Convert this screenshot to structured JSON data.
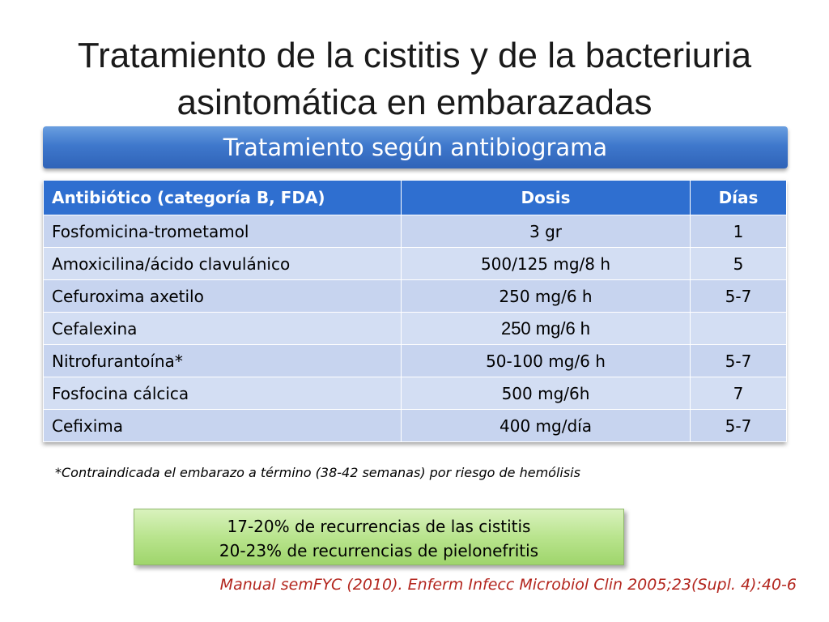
{
  "title": {
    "line1": "Tratamiento de la cistitis y de la bacteriuria",
    "line2": "asintomática en embarazadas"
  },
  "banner": {
    "text": "Tratamiento según antibiograma"
  },
  "table": {
    "headers": [
      "Antibiótico (categoría B, FDA)",
      "Dosis",
      "Días"
    ],
    "rows": [
      [
        "Fosfomicina-trometamol",
        "3 gr",
        "1"
      ],
      [
        "Amoxicilina/ácido clavulánico",
        "500/125 mg/8 h",
        "5"
      ],
      [
        "Cefuroxima axetilo",
        "250 mg/6 h",
        "5-7"
      ],
      [
        "Cefalexina",
        "250 mg/6 h",
        ""
      ],
      [
        "Nitrofurantoína*",
        "50-100 mg/6 h",
        "5-7"
      ],
      [
        "Fosfocina cálcica",
        "500 mg/6h",
        "7"
      ],
      [
        "Cefixima",
        "400 mg/día",
        "5-7"
      ]
    ]
  },
  "footnote": "*Contraindicada el embarazo a término (38-42 semanas) por  riesgo de hemólisis",
  "recurrences": {
    "line1": "17-20% de recurrencias de las cistitis",
    "line2": "20-23% de recurrencias de pielonefritis"
  },
  "reference": "Manual semFYC (2010). Enferm Infecc Microbiol Clin 2005;23(Supl. 4):40-6",
  "colors": {
    "header_blue": "#2f6fd0",
    "row_light_blue": "#c7d4ef",
    "reference_red": "#b3261e",
    "green_box": "#b9e48e"
  }
}
